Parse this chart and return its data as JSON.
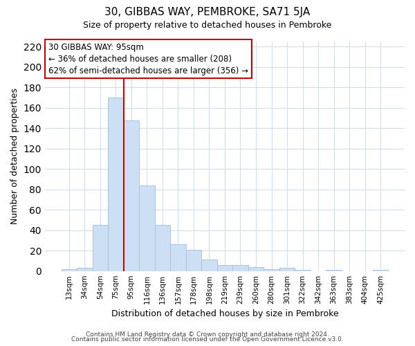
{
  "title": "30, GIBBAS WAY, PEMBROKE, SA71 5JA",
  "subtitle": "Size of property relative to detached houses in Pembroke",
  "xlabel": "Distribution of detached houses by size in Pembroke",
  "ylabel": "Number of detached properties",
  "categories": [
    "13sqm",
    "34sqm",
    "54sqm",
    "75sqm",
    "95sqm",
    "116sqm",
    "136sqm",
    "157sqm",
    "178sqm",
    "198sqm",
    "219sqm",
    "239sqm",
    "260sqm",
    "280sqm",
    "301sqm",
    "322sqm",
    "342sqm",
    "363sqm",
    "383sqm",
    "404sqm",
    "425sqm"
  ],
  "values": [
    2,
    3,
    45,
    170,
    148,
    84,
    45,
    26,
    21,
    11,
    6,
    6,
    4,
    2,
    3,
    1,
    0,
    1,
    0,
    0,
    1
  ],
  "bar_color": "#ccdff5",
  "bar_edge_color": "#a8c4e0",
  "vline_x": 3.5,
  "vline_color": "#cc0000",
  "annotation_title": "30 GIBBAS WAY: 95sqm",
  "annotation_line1": "← 36% of detached houses are smaller (208)",
  "annotation_line2": "62% of semi-detached houses are larger (356) →",
  "annotation_box_facecolor": "#ffffff",
  "annotation_box_edgecolor": "#cc0000",
  "ylim": [
    0,
    225
  ],
  "yticks": [
    0,
    20,
    40,
    60,
    80,
    100,
    120,
    140,
    160,
    180,
    200,
    220
  ],
  "grid_color": "#d0ddf0",
  "background_color": "#ffffff",
  "plot_bg_color": "#ffffff",
  "footer1": "Contains HM Land Registry data © Crown copyright and database right 2024.",
  "footer2": "Contains public sector information licensed under the Open Government Licence v3.0.",
  "title_fontsize": 11,
  "subtitle_fontsize": 9,
  "axis_label_fontsize": 9,
  "tick_fontsize": 7.5,
  "footer_fontsize": 6.5,
  "annotation_fontsize": 8.5
}
